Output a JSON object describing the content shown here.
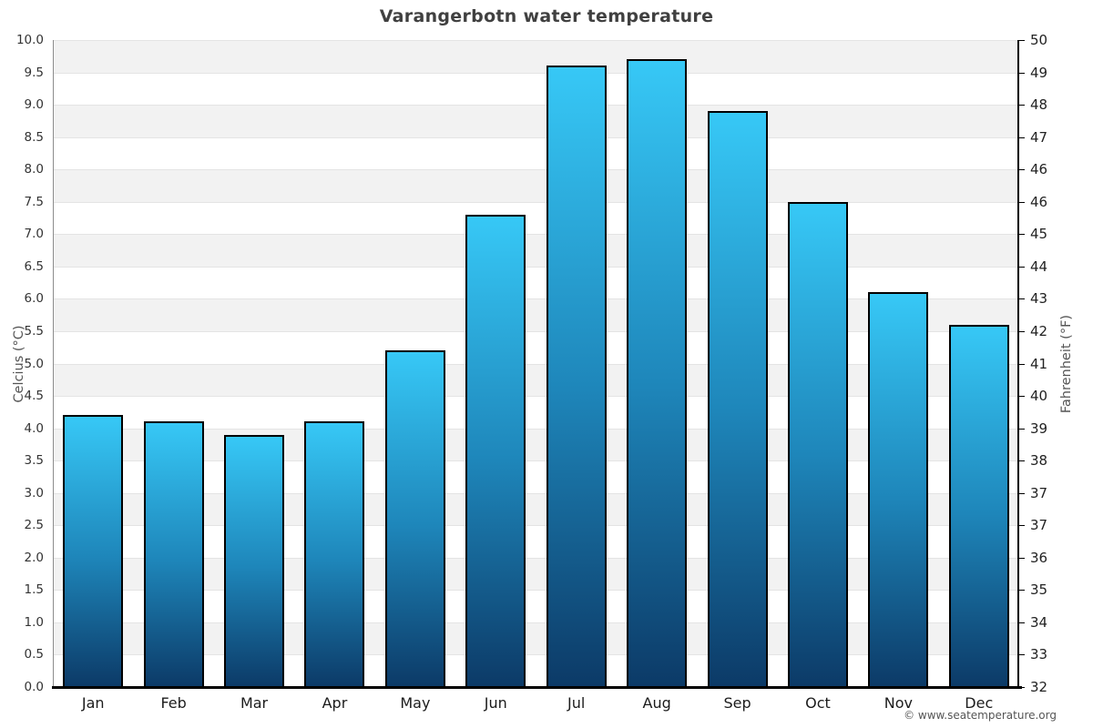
{
  "title": "Varangerbotn water temperature",
  "footer": {
    "text": "© www.seatemperature.org"
  },
  "chart_data": {
    "type": "bar",
    "title": "Varangerbotn water temperature",
    "categories": [
      "Jan",
      "Feb",
      "Mar",
      "Apr",
      "May",
      "Jun",
      "Jul",
      "Aug",
      "Sep",
      "Oct",
      "Nov",
      "Dec"
    ],
    "values": [
      4.2,
      4.1,
      3.9,
      4.1,
      5.2,
      7.3,
      9.6,
      9.7,
      8.9,
      7.5,
      6.1,
      5.6
    ],
    "xlabel": "",
    "y_left": {
      "label": "Celcius (°C)",
      "ticks": [
        "10.0",
        "9.5",
        "9.0",
        "8.5",
        "8.0",
        "7.5",
        "7.0",
        "6.5",
        "6.0",
        "5.5",
        "5.0",
        "4.5",
        "4.0",
        "3.5",
        "3.0",
        "2.5",
        "2.0",
        "1.5",
        "1.0",
        "0.5",
        "0.0"
      ]
    },
    "y_right": {
      "label": "Fahrenheit (°F)",
      "ticks": [
        "50",
        "49",
        "48",
        "47",
        "46",
        "46",
        "45",
        "44",
        "43",
        "42",
        "41",
        "40",
        "39",
        "38",
        "37",
        "37",
        "36",
        "35",
        "34",
        "33",
        "32"
      ]
    },
    "ylim": [
      0,
      10
    ],
    "ylim_right": [
      32,
      50
    ],
    "grid": "horizontal gridlines every 0.5°C with alternating shaded bands",
    "legend": false
  },
  "colors": {
    "bar_gradient_top": "#37c8f6",
    "bar_gradient_mid": "#1e86ba",
    "bar_gradient_bottom": "#0c3a67",
    "bar_border": "#000000",
    "band_shaded": "#f2f2f2",
    "band_plain": "#ffffff",
    "gridline": "#e4e4e4",
    "left_axis_line": "#8c8c8c",
    "right_axis_line": "#000000",
    "bottom_axis_line": "#000000",
    "title_text": "#404040",
    "tick_text": "#333333",
    "axis_title_text": "#555555",
    "footer_text": "#555555",
    "background": "#ffffff"
  }
}
